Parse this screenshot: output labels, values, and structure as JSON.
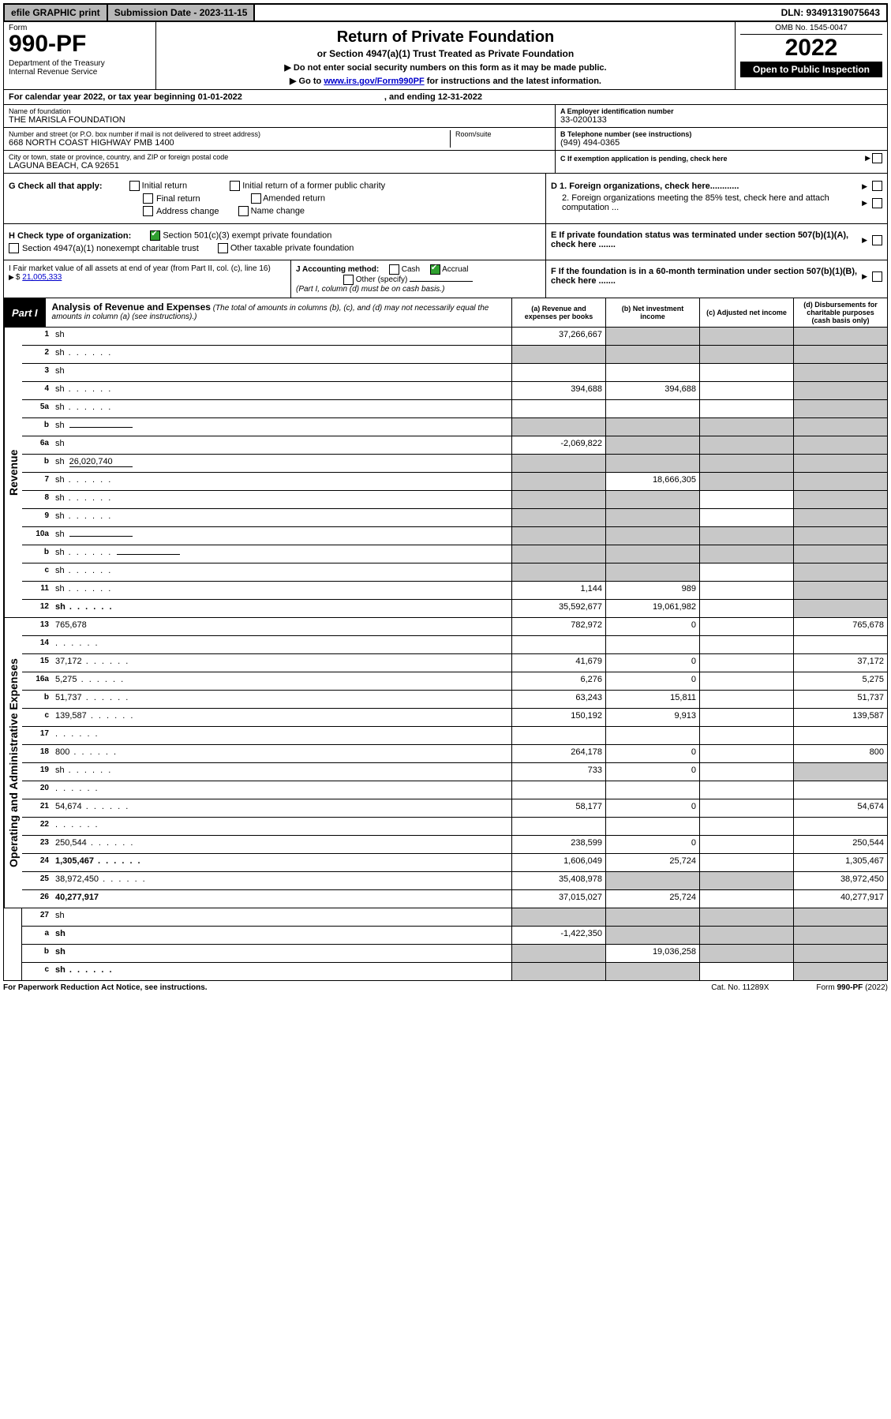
{
  "top": {
    "efile": "efile GRAPHIC print",
    "submission": "Submission Date - 2023-11-15",
    "dln": "DLN: 93491319075643"
  },
  "header": {
    "form_label": "Form",
    "form_number": "990-PF",
    "dept": "Department of the Treasury\nInternal Revenue Service",
    "title": "Return of Private Foundation",
    "subtitle": "or Section 4947(a)(1) Trust Treated as Private Foundation",
    "note1": "▶ Do not enter social security numbers on this form as it may be made public.",
    "note2_pre": "▶ Go to ",
    "note2_link": "www.irs.gov/Form990PF",
    "note2_post": " for instructions and the latest information.",
    "omb": "OMB No. 1545-0047",
    "year": "2022",
    "open": "Open to Public Inspection"
  },
  "calendar": {
    "text": "For calendar year 2022, or tax year beginning 01-01-2022",
    "end": ", and ending 12-31-2022"
  },
  "id": {
    "name_label": "Name of foundation",
    "name": "THE MARISLA FOUNDATION",
    "addr_label": "Number and street (or P.O. box number if mail is not delivered to street address)",
    "addr": "668 NORTH COAST HIGHWAY PMB 1400",
    "room_label": "Room/suite",
    "city_label": "City or town, state or province, country, and ZIP or foreign postal code",
    "city": "LAGUNA BEACH, CA  92651",
    "a_label": "A Employer identification number",
    "a_val": "33-0200133",
    "b_label": "B Telephone number (see instructions)",
    "b_val": "(949) 494-0365",
    "c_label": "C If exemption application is pending, check here"
  },
  "g": {
    "label": "G Check all that apply:",
    "opts": [
      "Initial return",
      "Final return",
      "Address change",
      "Initial return of a former public charity",
      "Amended return",
      "Name change"
    ]
  },
  "d": {
    "d1": "D 1. Foreign organizations, check here............",
    "d2": "2. Foreign organizations meeting the 85% test, check here and attach computation ...",
    "e": "E  If private foundation status was terminated under section 507(b)(1)(A), check here .......",
    "f": "F  If the foundation is in a 60-month termination under section 507(b)(1)(B), check here ......."
  },
  "h": {
    "label": "H Check type of organization:",
    "o1": "Section 501(c)(3) exempt private foundation",
    "o2": "Section 4947(a)(1) nonexempt charitable trust",
    "o3": "Other taxable private foundation"
  },
  "i": {
    "label": "I Fair market value of all assets at end of year (from Part II, col. (c), line 16)",
    "val": "21,005,333"
  },
  "j": {
    "label": "J Accounting method:",
    "cash": "Cash",
    "accrual": "Accrual",
    "other": "Other (specify)",
    "note": "(Part I, column (d) must be on cash basis.)"
  },
  "part1": {
    "label": "Part I",
    "title": "Analysis of Revenue and Expenses",
    "title_note": "(The total of amounts in columns (b), (c), and (d) may not necessarily equal the amounts in column (a) (see instructions).)",
    "col_a": "(a)  Revenue and expenses per books",
    "col_b": "(b)  Net investment income",
    "col_c": "(c)  Adjusted net income",
    "col_d": "(d)  Disbursements for charitable purposes (cash basis only)"
  },
  "side": {
    "rev": "Revenue",
    "exp": "Operating and Administrative Expenses"
  },
  "rows": [
    {
      "n": "1",
      "d": "sh",
      "a": "37,266,667",
      "b": "sh",
      "c": "sh"
    },
    {
      "n": "2",
      "d": "sh",
      "dots": true,
      "a": "sh",
      "b": "sh",
      "c": "sh"
    },
    {
      "n": "3",
      "d": "sh",
      "a": "",
      "b": "",
      "c": ""
    },
    {
      "n": "4",
      "d": "sh",
      "dots": true,
      "a": "394,688",
      "b": "394,688",
      "c": ""
    },
    {
      "n": "5a",
      "d": "sh",
      "dots": true,
      "a": "",
      "b": "",
      "c": ""
    },
    {
      "n": "b",
      "d": "sh",
      "inline": "",
      "a": "sh",
      "b": "sh",
      "c": "sh"
    },
    {
      "n": "6a",
      "d": "sh",
      "a": "-2,069,822",
      "b": "sh",
      "c": "sh"
    },
    {
      "n": "b",
      "d": "sh",
      "inline": "26,020,740",
      "a": "sh",
      "b": "sh",
      "c": "sh"
    },
    {
      "n": "7",
      "d": "sh",
      "dots": true,
      "a": "sh",
      "b": "18,666,305",
      "c": "sh"
    },
    {
      "n": "8",
      "d": "sh",
      "dots": true,
      "a": "sh",
      "b": "sh",
      "c": ""
    },
    {
      "n": "9",
      "d": "sh",
      "dots": true,
      "a": "sh",
      "b": "sh",
      "c": ""
    },
    {
      "n": "10a",
      "d": "sh",
      "inline": "",
      "a": "sh",
      "b": "sh",
      "c": "sh"
    },
    {
      "n": "b",
      "d": "sh",
      "dots": true,
      "inline": "",
      "a": "sh",
      "b": "sh",
      "c": "sh"
    },
    {
      "n": "c",
      "d": "sh",
      "dots": true,
      "a": "sh",
      "b": "sh",
      "c": ""
    },
    {
      "n": "11",
      "d": "sh",
      "dots": true,
      "a": "1,144",
      "b": "989",
      "c": ""
    },
    {
      "n": "12",
      "d": "sh",
      "dots": true,
      "bold": true,
      "a": "35,592,677",
      "b": "19,061,982",
      "c": ""
    }
  ],
  "rows_exp": [
    {
      "n": "13",
      "d": "765,678",
      "a": "782,972",
      "b": "0",
      "c": ""
    },
    {
      "n": "14",
      "d": "",
      "dots": true,
      "a": "",
      "b": "",
      "c": ""
    },
    {
      "n": "15",
      "d": "37,172",
      "dots": true,
      "a": "41,679",
      "b": "0",
      "c": ""
    },
    {
      "n": "16a",
      "d": "5,275",
      "dots": true,
      "a": "6,276",
      "b": "0",
      "c": ""
    },
    {
      "n": "b",
      "d": "51,737",
      "dots": true,
      "a": "63,243",
      "b": "15,811",
      "c": ""
    },
    {
      "n": "c",
      "d": "139,587",
      "dots": true,
      "a": "150,192",
      "b": "9,913",
      "c": ""
    },
    {
      "n": "17",
      "d": "",
      "dots": true,
      "a": "",
      "b": "",
      "c": ""
    },
    {
      "n": "18",
      "d": "800",
      "dots": true,
      "a": "264,178",
      "b": "0",
      "c": ""
    },
    {
      "n": "19",
      "d": "sh",
      "dots": true,
      "a": "733",
      "b": "0",
      "c": ""
    },
    {
      "n": "20",
      "d": "",
      "dots": true,
      "a": "",
      "b": "",
      "c": ""
    },
    {
      "n": "21",
      "d": "54,674",
      "dots": true,
      "a": "58,177",
      "b": "0",
      "c": ""
    },
    {
      "n": "22",
      "d": "",
      "dots": true,
      "a": "",
      "b": "",
      "c": ""
    },
    {
      "n": "23",
      "d": "250,544",
      "dots": true,
      "a": "238,599",
      "b": "0",
      "c": ""
    },
    {
      "n": "24",
      "d": "1,305,467",
      "dots": true,
      "bold": true,
      "a": "1,606,049",
      "b": "25,724",
      "c": ""
    },
    {
      "n": "25",
      "d": "38,972,450",
      "dots": true,
      "a": "35,408,978",
      "b": "sh",
      "c": "sh"
    },
    {
      "n": "26",
      "d": "40,277,917",
      "bold": true,
      "a": "37,015,027",
      "b": "25,724",
      "c": ""
    }
  ],
  "rows_bottom": [
    {
      "n": "27",
      "d": "sh",
      "a": "sh",
      "b": "sh",
      "c": "sh"
    },
    {
      "n": "a",
      "d": "sh",
      "bold": true,
      "a": "-1,422,350",
      "b": "sh",
      "c": "sh"
    },
    {
      "n": "b",
      "d": "sh",
      "bold": true,
      "a": "sh",
      "b": "19,036,258",
      "c": "sh"
    },
    {
      "n": "c",
      "d": "sh",
      "bold": true,
      "dots": true,
      "a": "sh",
      "b": "sh",
      "c": ""
    }
  ],
  "footer": {
    "left": "For Paperwork Reduction Act Notice, see instructions.",
    "mid": "Cat. No. 11289X",
    "right": "Form 990-PF (2022)"
  },
  "colors": {
    "shade": "#c8c8c8",
    "link": "#0000cc",
    "check_green": "#30a030"
  }
}
